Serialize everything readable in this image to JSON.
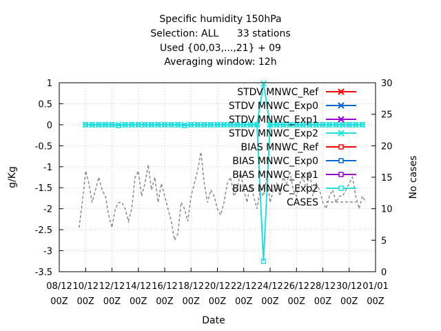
{
  "chart_data": {
    "type": "line",
    "title_lines": [
      "Specific humidity 150hPa",
      "Selection: ALL      33 stations",
      "Used {00,03,...,21} + 09",
      "Averaging window: 12h"
    ],
    "xlabel": "Date",
    "ylabel": "g/Kg",
    "y2label": "No cases",
    "ylim": [
      -3.5,
      1
    ],
    "y2lim": [
      0,
      30
    ],
    "yticks": [
      "1",
      "0.5",
      "0",
      "-0.5",
      "-1",
      "-1.5",
      "-2",
      "-2.5",
      "-3",
      "-3.5"
    ],
    "y2ticks": [
      "30",
      "25",
      "20",
      "15",
      "10",
      "5",
      "0"
    ],
    "xlim": [
      "2017-08-12",
      "2018-01-01"
    ],
    "xticks": [
      {
        "top": "08/12",
        "bottom": "00Z"
      },
      {
        "top": "10/12",
        "bottom": "00Z"
      },
      {
        "top": "12/12",
        "bottom": "00Z"
      },
      {
        "top": "14/12",
        "bottom": "00Z"
      },
      {
        "top": "16/12",
        "bottom": "00Z"
      },
      {
        "top": "18/12",
        "bottom": "00Z"
      },
      {
        "top": "20/12",
        "bottom": "00Z"
      },
      {
        "top": "22/12",
        "bottom": "00Z"
      },
      {
        "top": "24/12",
        "bottom": "00Z"
      },
      {
        "top": "26/12",
        "bottom": "00Z"
      },
      {
        "top": "28/12",
        "bottom": "00Z"
      },
      {
        "top": "30/12",
        "bottom": "00Z"
      },
      {
        "top": "01/01",
        "bottom": "00Z"
      }
    ],
    "grid": true,
    "legend_position": "top-right",
    "legend": [
      {
        "name": "STDV MNWC_Ref",
        "color": "#ff0000",
        "marker": "x"
      },
      {
        "name": "STDV MNWC_Exp0",
        "color": "#0066cc",
        "marker": "x"
      },
      {
        "name": "STDV MNWC_Exp1",
        "color": "#9900cc",
        "marker": "x"
      },
      {
        "name": "STDV MNWC_Exp2",
        "color": "#22dddd",
        "marker": "x"
      },
      {
        "name": "BIAS MNWC_Ref",
        "color": "#ff0000",
        "marker": "square"
      },
      {
        "name": "BIAS MNWC_Exp0",
        "color": "#0066cc",
        "marker": "square"
      },
      {
        "name": "BIAS MNWC_Exp1",
        "color": "#9900cc",
        "marker": "square"
      },
      {
        "name": "BIAS MNWC_Exp2",
        "color": "#22dddd",
        "marker": "square"
      },
      {
        "name": "CASES",
        "color": "#888888",
        "marker": "dashed"
      }
    ],
    "series": [
      {
        "name": "STDV MNWC_Exp2",
        "color": "#22dddd",
        "x": [
          "10/12 00Z",
          "10/12 12Z",
          "11/12 00Z",
          "11/12 12Z",
          "12/12 00Z",
          "12/12 12Z",
          "13/12 00Z",
          "13/12 12Z",
          "14/12 00Z",
          "14/12 12Z",
          "15/12 00Z",
          "15/12 12Z",
          "16/12 00Z",
          "16/12 12Z",
          "17/12 00Z",
          "17/12 12Z",
          "18/12 00Z",
          "18/12 12Z",
          "19/12 00Z",
          "19/12 12Z",
          "20/12 00Z",
          "20/12 12Z",
          "21/12 00Z",
          "21/12 12Z",
          "22/12 00Z",
          "22/12 12Z",
          "23/12 00Z",
          "23/12 12Z",
          "24/12 00Z",
          "24/12 12Z",
          "25/12 00Z",
          "25/12 12Z",
          "26/12 00Z",
          "26/12 12Z",
          "27/12 00Z",
          "27/12 12Z",
          "28/12 00Z",
          "28/12 12Z",
          "29/12 00Z",
          "29/12 12Z",
          "30/12 00Z",
          "30/12 12Z",
          "31/12 00Z"
        ],
        "values": [
          0,
          0,
          0,
          0,
          0,
          0,
          0,
          0,
          0,
          0,
          0,
          0,
          0,
          0,
          0,
          0,
          0,
          0,
          0,
          0,
          0,
          0,
          0,
          0,
          0,
          0,
          0,
          0.98,
          0,
          0,
          0,
          0,
          0,
          0,
          0,
          0,
          0,
          0,
          0,
          0,
          0,
          0,
          0
        ]
      },
      {
        "name": "BIAS MNWC_Exp2",
        "color": "#22dddd",
        "x": [
          "10/12 00Z",
          "10/12 12Z",
          "11/12 00Z",
          "11/12 12Z",
          "12/12 00Z",
          "12/12 12Z",
          "13/12 00Z",
          "13/12 12Z",
          "14/12 00Z",
          "14/12 12Z",
          "15/12 00Z",
          "15/12 12Z",
          "16/12 00Z",
          "16/12 12Z",
          "17/12 00Z",
          "17/12 12Z",
          "18/12 00Z",
          "18/12 12Z",
          "19/12 00Z",
          "19/12 12Z",
          "20/12 00Z",
          "20/12 12Z",
          "21/12 00Z",
          "21/12 12Z",
          "22/12 00Z",
          "22/12 12Z",
          "23/12 00Z",
          "23/12 12Z",
          "24/12 00Z",
          "24/12 12Z",
          "25/12 00Z",
          "25/12 12Z",
          "26/12 00Z",
          "26/12 12Z",
          "27/12 00Z",
          "27/12 12Z",
          "28/12 00Z",
          "28/12 12Z",
          "29/12 00Z",
          "29/12 12Z",
          "30/12 00Z",
          "30/12 12Z",
          "31/12 00Z"
        ],
        "values": [
          0,
          0,
          0,
          0,
          0,
          -0.02,
          0,
          0,
          0,
          0,
          0,
          0,
          0,
          0,
          0,
          -0.02,
          0,
          0,
          0,
          0,
          0,
          0,
          0,
          0,
          0,
          0,
          0,
          -3.25,
          0,
          0,
          0,
          0,
          0,
          0,
          0,
          0,
          0,
          0,
          0,
          0,
          0,
          0,
          0
        ]
      },
      {
        "name": "CASES",
        "color": "#888888",
        "axis": "right",
        "x": [
          "09/12 12Z",
          "09/12 18Z",
          "10/12 00Z",
          "10/12 06Z",
          "10/12 12Z",
          "10/12 18Z",
          "11/12 00Z",
          "11/12 06Z",
          "11/12 12Z",
          "11/12 18Z",
          "12/12 00Z",
          "12/12 06Z",
          "12/12 12Z",
          "12/12 18Z",
          "13/12 00Z",
          "13/12 06Z",
          "13/12 12Z",
          "13/12 18Z",
          "14/12 00Z",
          "14/12 06Z",
          "14/12 12Z",
          "14/12 18Z",
          "15/12 00Z",
          "15/12 06Z",
          "15/12 12Z",
          "15/12 18Z",
          "16/12 00Z",
          "16/12 06Z",
          "16/12 12Z",
          "16/12 18Z",
          "17/12 00Z",
          "17/12 06Z",
          "17/12 12Z",
          "17/12 18Z",
          "18/12 00Z",
          "18/12 06Z",
          "18/12 12Z",
          "18/12 18Z",
          "19/12 00Z",
          "19/12 06Z",
          "19/12 12Z",
          "19/12 18Z",
          "20/12 00Z",
          "20/12 06Z",
          "20/12 12Z",
          "20/12 18Z",
          "21/12 00Z",
          "21/12 06Z",
          "21/12 12Z",
          "21/12 18Z",
          "22/12 00Z",
          "22/12 06Z",
          "22/12 12Z",
          "22/12 18Z",
          "23/12 00Z",
          "23/12 06Z",
          "23/12 12Z",
          "23/12 18Z",
          "24/12 00Z",
          "24/12 06Z",
          "24/12 12Z",
          "24/12 18Z",
          "25/12 00Z",
          "25/12 06Z",
          "25/12 12Z",
          "25/12 18Z",
          "26/12 00Z",
          "26/12 06Z",
          "26/12 12Z",
          "26/12 18Z",
          "27/12 00Z",
          "27/12 06Z",
          "27/12 12Z",
          "27/12 18Z",
          "28/12 00Z",
          "28/12 06Z",
          "28/12 12Z",
          "28/12 18Z",
          "29/12 00Z",
          "29/12 06Z",
          "29/12 12Z",
          "29/12 18Z",
          "30/12 00Z",
          "30/12 06Z",
          "30/12 12Z",
          "30/12 18Z",
          "31/12 00Z",
          "31/12 06Z"
        ],
        "values": [
          7,
          11,
          16,
          14,
          11,
          13,
          15,
          13,
          12,
          9,
          7,
          10,
          11,
          11,
          10,
          8,
          10,
          15,
          16,
          12,
          14,
          17,
          13,
          15,
          11,
          14,
          12,
          10,
          8,
          5,
          6,
          11,
          10,
          8,
          12,
          14,
          16,
          19,
          14,
          11,
          13,
          12,
          10,
          9,
          11,
          14,
          15,
          12,
          13,
          16,
          13,
          11,
          14,
          12,
          10,
          13,
          12,
          15,
          11,
          13,
          14,
          12,
          15,
          14,
          16,
          13,
          12,
          14,
          15,
          13,
          16,
          12,
          14,
          13,
          11,
          10,
          12,
          13,
          11,
          12,
          12,
          13,
          14,
          15,
          12,
          10,
          12,
          11
        ]
      }
    ]
  }
}
